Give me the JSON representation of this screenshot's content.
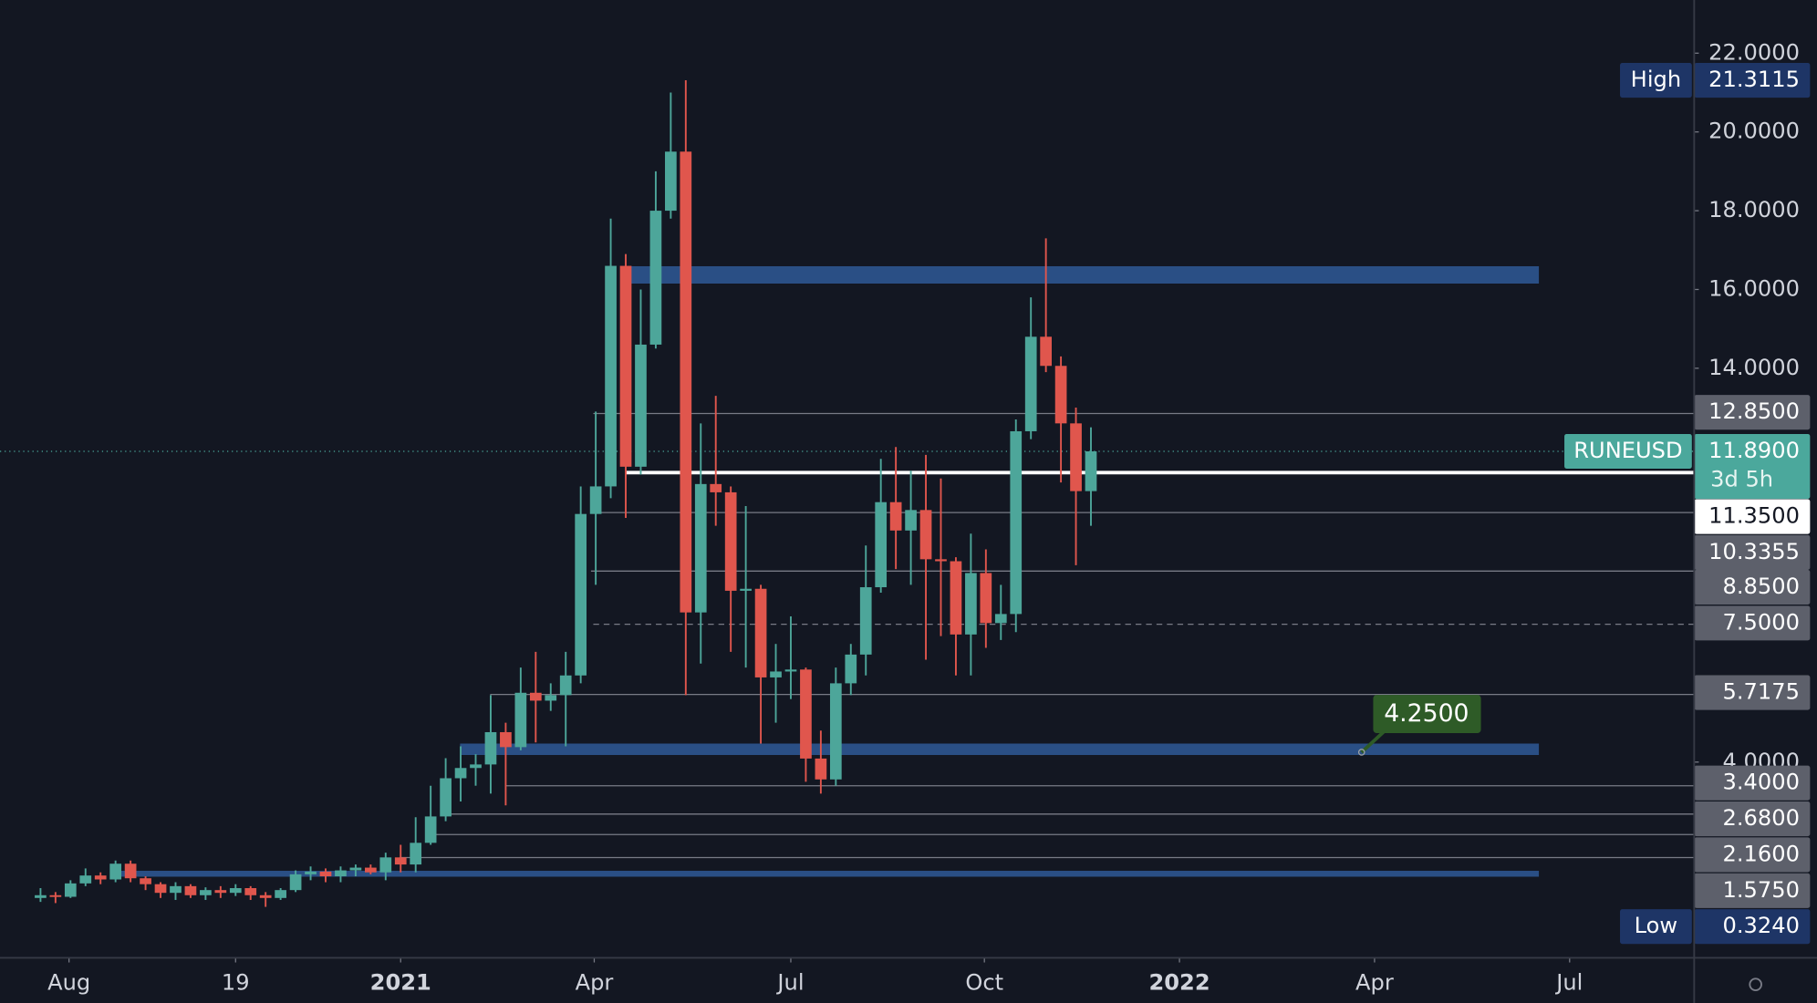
{
  "chart_data": {
    "type": "candlestick",
    "symbol": "RUNEUSD",
    "countdown": "3d 5h",
    "up_color": "#4da69a",
    "down_color": "#e0564d",
    "xlim": [
      -2.7,
      110.2
    ],
    "xticks": [
      {
        "value": 1.9,
        "label": "Aug"
      },
      {
        "value": 13,
        "label": "19"
      },
      {
        "value": 24,
        "label": "2021"
      },
      {
        "value": 36.9,
        "label": "Apr"
      },
      {
        "value": 50,
        "label": "Jul"
      },
      {
        "value": 62.9,
        "label": "Oct"
      },
      {
        "value": 75.9,
        "label": "2022"
      },
      {
        "value": 88.9,
        "label": "Apr"
      },
      {
        "value": 101.9,
        "label": "Jul"
      }
    ],
    "ylim": [
      -0.97,
      23.35
    ],
    "yticks": [
      {
        "value": 22,
        "label": "22.0000"
      },
      {
        "value": 20,
        "label": "20.0000"
      },
      {
        "value": 18,
        "label": "18.0000"
      },
      {
        "value": 16,
        "label": "16.0000"
      },
      {
        "value": 14,
        "label": "14.0000"
      },
      {
        "value": 4,
        "label": "4.0000"
      }
    ],
    "open": [
      0.55,
      0.62,
      0.58,
      0.92,
      1.12,
      1.02,
      1.42,
      1.05,
      0.9,
      0.68,
      0.85,
      0.62,
      0.75,
      0.68,
      0.8,
      0.62,
      0.55,
      0.75,
      1.15,
      1.22,
      1.1,
      1.25,
      1.32,
      1.2,
      1.58,
      1.4,
      1.95,
      2.62,
      3.59,
      3.85,
      3.94,
      4.76,
      4.38,
      5.76,
      5.56,
      5.7,
      6.2,
      10.3,
      11.0,
      16.6,
      11.5,
      14.6,
      18.0,
      19.5,
      7.8,
      11.06,
      10.85,
      8.35,
      8.4,
      6.15,
      6.3,
      6.35,
      4.09,
      3.56,
      6.0,
      6.73,
      8.44,
      10.6,
      9.88,
      10.4,
      9.15,
      9.1,
      7.24,
      8.8,
      7.53,
      7.76,
      12.4,
      14.8,
      14.06,
      12.6,
      10.88
    ],
    "high": [
      0.8,
      0.7,
      1.0,
      1.3,
      1.2,
      1.5,
      1.5,
      1.1,
      0.95,
      0.95,
      0.9,
      0.82,
      0.85,
      0.9,
      0.85,
      0.7,
      0.8,
      1.25,
      1.35,
      1.3,
      1.35,
      1.4,
      1.4,
      1.7,
      1.9,
      2.6,
      3.4,
      4.1,
      4.4,
      4.2,
      5.7,
      5.0,
      6.4,
      6.8,
      6.0,
      6.8,
      11.0,
      12.9,
      17.8,
      16.9,
      16.0,
      19.0,
      21.0,
      21.3115,
      12.6,
      13.3,
      11.0,
      10.5,
      8.5,
      7.0,
      7.7,
      6.4,
      4.8,
      6.4,
      7.0,
      9.5,
      11.7,
      12.0,
      11.4,
      11.8,
      11.2,
      9.2,
      9.8,
      9.4,
      8.5,
      12.7,
      15.8,
      17.3,
      14.3,
      13.0,
      12.5
    ],
    "low": [
      0.45,
      0.42,
      0.55,
      0.85,
      0.9,
      0.95,
      0.95,
      0.75,
      0.55,
      0.5,
      0.55,
      0.5,
      0.55,
      0.6,
      0.5,
      0.324,
      0.5,
      0.7,
      1.0,
      0.95,
      0.95,
      1.1,
      1.15,
      1.0,
      1.2,
      1.2,
      1.9,
      2.5,
      3.0,
      3.4,
      3.2,
      2.9,
      4.3,
      4.5,
      5.3,
      4.4,
      6.0,
      8.5,
      10.7,
      10.2,
      11.3,
      14.5,
      17.8,
      5.7,
      6.5,
      10.0,
      6.8,
      6.4,
      4.47,
      5.0,
      5.6,
      3.5,
      3.2,
      3.4,
      5.7,
      6.2,
      8.3,
      8.9,
      8.5,
      6.6,
      7.2,
      6.2,
      6.2,
      6.9,
      7.1,
      7.3,
      12.2,
      13.9,
      11.1,
      9.0,
      10.0
    ],
    "close": [
      0.62,
      0.58,
      0.92,
      1.12,
      1.02,
      1.42,
      1.05,
      0.9,
      0.68,
      0.85,
      0.62,
      0.75,
      0.68,
      0.8,
      0.62,
      0.55,
      0.75,
      1.15,
      1.22,
      1.1,
      1.25,
      1.32,
      1.2,
      1.58,
      1.4,
      1.95,
      2.62,
      3.59,
      3.85,
      3.94,
      4.76,
      4.38,
      5.76,
      5.56,
      5.7,
      6.2,
      10.3,
      11.0,
      16.6,
      11.5,
      14.6,
      18.0,
      19.5,
      7.8,
      11.06,
      10.85,
      8.35,
      8.4,
      6.15,
      6.3,
      6.35,
      4.09,
      3.56,
      6.0,
      6.73,
      8.44,
      10.6,
      9.88,
      10.4,
      9.15,
      9.1,
      7.24,
      8.8,
      7.53,
      7.76,
      12.4,
      14.8,
      14.06,
      12.6,
      10.88,
      11.89
    ],
    "last_price": {
      "value": 11.89,
      "label": "11.8900",
      "color": "#4ba89c"
    },
    "high_marker": {
      "name": "High",
      "value": 21.3115,
      "label": "21.3115",
      "color": "#1e3566"
    },
    "low_marker": {
      "name": "Low",
      "value": 0.324,
      "label": "0.3240",
      "color": "#1e3566"
    },
    "levels": [
      {
        "value": 12.85,
        "label": "12.8500",
        "color": "#5d606b"
      },
      {
        "value": 11.35,
        "label": "11.3500",
        "color": "#ffffff"
      },
      {
        "value": 10.3355,
        "label": "10.3355",
        "color": "#5d606b"
      },
      {
        "value": 8.85,
        "label": "8.8500",
        "color": "#5d606b"
      },
      {
        "value": 7.5,
        "label": "7.5000",
        "color": "#5d606b",
        "dashed": true
      },
      {
        "value": 5.7175,
        "label": "5.7175",
        "color": "#5d606b"
      },
      {
        "value": 3.4,
        "label": "3.4000",
        "color": "#5d606b"
      },
      {
        "value": 2.68,
        "label": "2.6800",
        "color": "#5d606b"
      },
      {
        "value": 2.16,
        "label": "2.1600",
        "color": "#5d606b"
      },
      {
        "value": 1.575,
        "label": "1.5750",
        "color": "#5d606b"
      }
    ],
    "zones": [
      {
        "low": 16.15,
        "high": 16.59,
        "color": "#2a4f85"
      },
      {
        "low": 4.18,
        "high": 4.47,
        "color": "#2a4f85"
      },
      {
        "low": 1.09,
        "high": 1.24,
        "color": "#2a4f85"
      }
    ],
    "annotation": {
      "value": 4.25,
      "label": "4.2500",
      "color": "#2e5b27"
    }
  }
}
